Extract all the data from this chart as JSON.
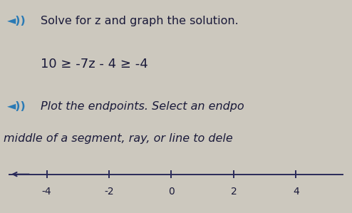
{
  "line1_speaker": "◄⧐",
  "line1_text": "Solve for z and graph the solution.",
  "line2_text": "10 ≥ -7z - 4 ≥ -4",
  "line3_speaker": "◄⧐",
  "line3_text": "Plot the endpoints. Select an endpo",
  "line4_text": "middle of a segment, ray, or line to dele",
  "background_color": "#ccc8be",
  "number_line_color": "#2a2a5a",
  "tick_labels": [
    -4,
    -2,
    0,
    2,
    4
  ],
  "xlim": [
    -5.5,
    5.5
  ],
  "text_color": "#1a1a3a",
  "speaker_color": "#2a7ab5",
  "title_fontsize": 11.5,
  "math_fontsize": 12,
  "instr_fontsize": 11.5,
  "tick_fontsize": 10
}
